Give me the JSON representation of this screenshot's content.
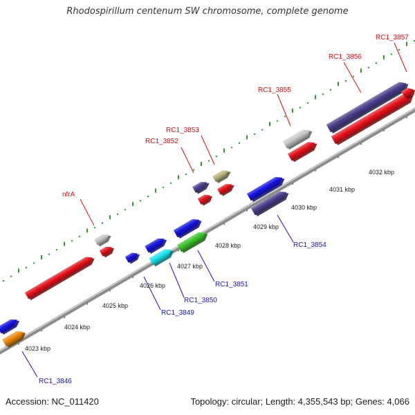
{
  "title": "Rhodospirillum centenum SW chromosome, complete genome",
  "footer": {
    "accession": "Accession: NC_011420",
    "topology": "Topology: circular; Length: 4,355,543 bp; Genes: 4,066"
  },
  "scale_labels": [
    "4023 kbp",
    "4024 kbp",
    "4025 kbp",
    "4026 kbp",
    "4027 kbp",
    "4028 kbp",
    "4029 kbp",
    "4030 kbp",
    "4031 kbp",
    "4032 kbp"
  ],
  "top_gene_labels": [
    "nfrA",
    "RC1_3852",
    "RC1_3853",
    "RC1_3855",
    "RC1_3856",
    "RC1_3857"
  ],
  "bottom_gene_labels": [
    "RC1_3846",
    "RC1_3849",
    "RC1_3850",
    "RC1_3851",
    "RC1_3854"
  ],
  "colors": {
    "red": "#e8131b",
    "blue": "#1414e0",
    "navy": "#4a3f8c",
    "gray": "#c8c8c8",
    "olive": "#bcb37a",
    "cyan": "#19e6ee",
    "green": "#3cc42a",
    "orange": "#f08a0c",
    "top_label": "#d01010",
    "bottom_label": "#1414b4"
  }
}
